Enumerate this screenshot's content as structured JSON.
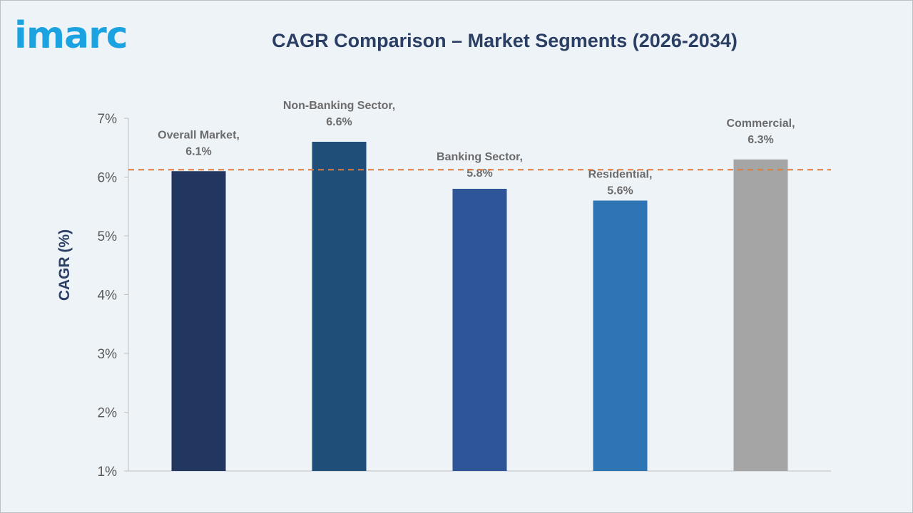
{
  "brand": {
    "logo_text": "imarc",
    "logo_color": "#1aa3e0"
  },
  "chart_data": {
    "type": "bar",
    "title": "CAGR Comparison – Market Segments (2026-2034)",
    "xlabel": "",
    "ylabel": "CAGR (%)",
    "categories": [
      "Overall Market",
      "Non-Banking Sector",
      "Banking Sector",
      "Residential",
      "Commercial"
    ],
    "values": [
      6.1,
      6.6,
      5.8,
      5.6,
      6.3
    ],
    "data_labels": [
      [
        "Overall Market,",
        "6.1%"
      ],
      [
        "Non-Banking Sector,",
        "6.6%"
      ],
      [
        "Banking Sector,",
        "5.8%"
      ],
      [
        "Residential,",
        "5.6%"
      ],
      [
        "Commercial,",
        "6.3%"
      ]
    ],
    "colors": [
      "#22375f",
      "#1f4e79",
      "#2e5597",
      "#2e75b6",
      "#a5a5a5"
    ],
    "ylim": [
      1,
      7
    ],
    "yticks": [
      1,
      2,
      3,
      4,
      5,
      6,
      7
    ],
    "ytick_labels": [
      "1%",
      "2%",
      "3%",
      "4%",
      "5%",
      "6%",
      "7%"
    ],
    "reference_line": {
      "value": 6.1,
      "style": "dashed",
      "color": "#e07b39"
    },
    "grid": false,
    "legend": "none"
  }
}
